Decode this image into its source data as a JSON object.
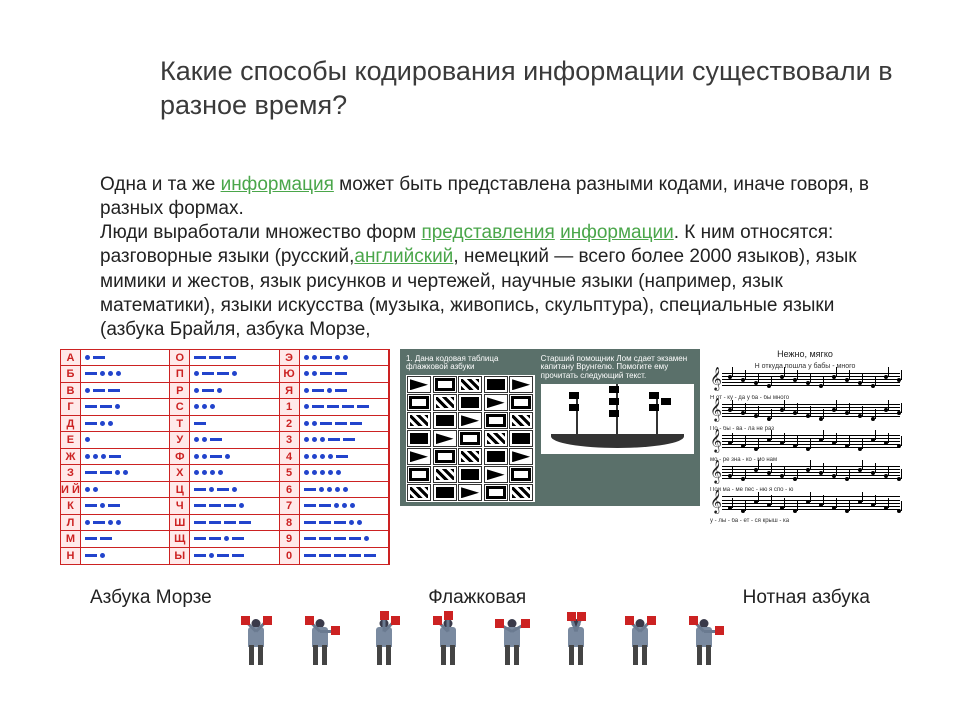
{
  "title": "Какие способы кодирования информации существовали в разное время?",
  "paragraph": {
    "t1": "Одна и та же ",
    "link1": "информация",
    "t2": " может быть представлена разными кодами, иначе говоря, в разных формах.",
    "t3": "Люди выработали множество форм ",
    "link2": "представления",
    "sp1": " ",
    "link3": "информации",
    "t4": ". К ним относятся: разговорные языки (русский,",
    "link4": "английский",
    "t5": ", немецкий — всего более 2000 языков), язык мимики и жестов, язык рисунков и чертежей, научные языки (например, язык математики), языки искусства (музыка, живопись, скульптура), специальные языки (азбука Брайля, азбука Морзе,"
  },
  "morse": {
    "rows": [
      {
        "l": "А",
        "c": [
          ".",
          "-"
        ],
        "l2": "О",
        "c2": [
          "-",
          "-",
          "-"
        ],
        "l3": "Э",
        "c3": [
          ".",
          ".",
          "-",
          ".",
          "."
        ]
      },
      {
        "l": "Б",
        "c": [
          "-",
          ".",
          ".",
          "."
        ],
        "l2": "П",
        "c2": [
          ".",
          "-",
          "-",
          "."
        ],
        "l3": "Ю",
        "c3": [
          ".",
          ".",
          "-",
          "-"
        ]
      },
      {
        "l": "В",
        "c": [
          ".",
          "-",
          "-"
        ],
        "l2": "Р",
        "c2": [
          ".",
          "-",
          "."
        ],
        "l3": "Я",
        "c3": [
          ".",
          "-",
          ".",
          "-"
        ]
      },
      {
        "l": "Г",
        "c": [
          "-",
          "-",
          "."
        ],
        "l2": "С",
        "c2": [
          ".",
          ".",
          "."
        ],
        "l3": "1",
        "c3": [
          ".",
          "-",
          "-",
          "-",
          "-"
        ]
      },
      {
        "l": "Д",
        "c": [
          "-",
          ".",
          "."
        ],
        "l2": "Т",
        "c2": [
          "-"
        ],
        "l3": "2",
        "c3": [
          ".",
          ".",
          "-",
          "-",
          "-"
        ]
      },
      {
        "l": "Е",
        "c": [
          "."
        ],
        "l2": "У",
        "c2": [
          ".",
          ".",
          "-"
        ],
        "l3": "3",
        "c3": [
          ".",
          ".",
          ".",
          "-",
          "-"
        ]
      },
      {
        "l": "Ж",
        "c": [
          ".",
          ".",
          ".",
          "-"
        ],
        "l2": "Ф",
        "c2": [
          ".",
          ".",
          "-",
          "."
        ],
        "l3": "4",
        "c3": [
          ".",
          ".",
          ".",
          ".",
          "-"
        ]
      },
      {
        "l": "З",
        "c": [
          "-",
          "-",
          ".",
          "."
        ],
        "l2": "Х",
        "c2": [
          ".",
          ".",
          ".",
          "."
        ],
        "l3": "5",
        "c3": [
          ".",
          ".",
          ".",
          ".",
          "."
        ]
      },
      {
        "l": "И Й",
        "c": [
          ".",
          "."
        ],
        "l2": "Ц",
        "c2": [
          "-",
          ".",
          "-",
          "."
        ],
        "l3": "6",
        "c3": [
          "-",
          ".",
          ".",
          ".",
          "."
        ]
      },
      {
        "l": "К",
        "c": [
          "-",
          ".",
          "-"
        ],
        "l2": "Ч",
        "c2": [
          "-",
          "-",
          "-",
          "."
        ],
        "l3": "7",
        "c3": [
          "-",
          "-",
          ".",
          ".",
          "."
        ]
      },
      {
        "l": "Л",
        "c": [
          ".",
          "-",
          ".",
          "."
        ],
        "l2": "Ш",
        "c2": [
          "-",
          "-",
          "-",
          "-"
        ],
        "l3": "8",
        "c3": [
          "-",
          "-",
          "-",
          ".",
          "."
        ]
      },
      {
        "l": "М",
        "c": [
          "-",
          "-"
        ],
        "l2": "Щ",
        "c2": [
          "-",
          "-",
          ".",
          "-"
        ],
        "l3": "9",
        "c3": [
          "-",
          "-",
          "-",
          "-",
          "."
        ]
      },
      {
        "l": "Н",
        "c": [
          "-",
          "."
        ],
        "l2": "Ы",
        "c2": [
          "-",
          ".",
          "-",
          "-"
        ],
        "l3": "0",
        "c3": [
          "-",
          "-",
          "-",
          "-",
          "-"
        ]
      }
    ],
    "border_color": "#c22",
    "letter_bg": "#ffe9e9",
    "symbol_color": "#2244cc"
  },
  "flags": {
    "bg": "#5a706a",
    "left_title": "1. Дана кодовая таблица флажковой азбуки",
    "right_title": "Старший помощник Лом сдает экзамен капитану Врунгелю. Помогите ему прочитать следующий текст.",
    "grid_rows": 7,
    "grid_cols": 5
  },
  "music": {
    "title": "Нежно, мягко",
    "subtitle": "Н откуда пошла у бабы - много",
    "lyrics": [
      "Н  от - ку - да  у  ба - бы  много",
      "По - бы - ва - ла  не  раз",
      "мо - ре  зна - ко - мо  нам",
      "Пой  ма - ме  пес - ню  я  спо - ю",
      "у - лы - ба - ет - ся  крыш - ка"
    ],
    "staves": 5
  },
  "captions": {
    "morse": "Азбука Морзе",
    "flags": "Флажковая",
    "music": "Нотная азбука"
  },
  "semaphore": {
    "count": 8,
    "arm_angles": [
      {
        "l": -135,
        "r": -45
      },
      {
        "l": -135,
        "r": 0
      },
      {
        "l": -90,
        "r": -45
      },
      {
        "l": -135,
        "r": -90
      },
      {
        "l": -150,
        "r": -30
      },
      {
        "l": -110,
        "r": -70
      },
      {
        "l": -45,
        "r": -135
      },
      {
        "l": -135,
        "r": 0
      }
    ],
    "body_color": "#7a8aa0",
    "flag_color": "#cc2222"
  }
}
